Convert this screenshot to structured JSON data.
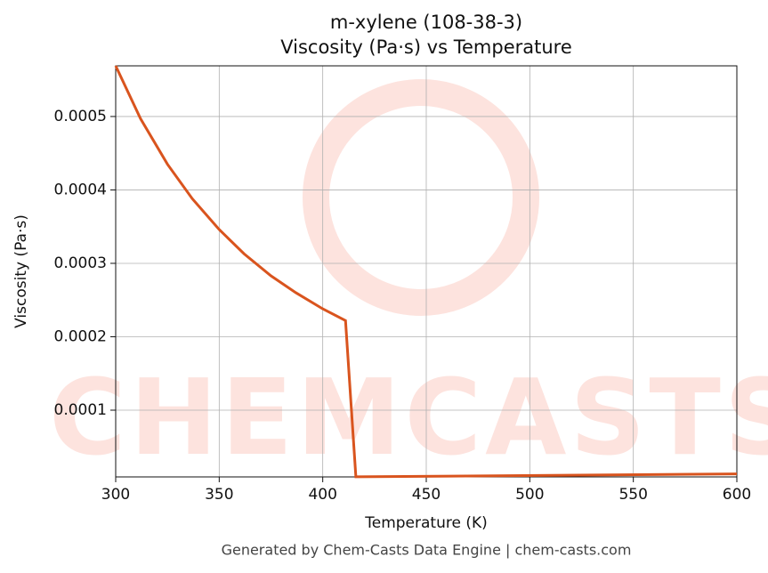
{
  "chart_data": {
    "type": "line",
    "title": "m-xylene (108-38-3)",
    "subtitle": "Viscosity (Pa·s) vs Temperature",
    "x_label": "Temperature (K)",
    "y_label": "Viscosity (Pa·s)",
    "watermark": "CHEMCASTS",
    "footer": "Generated by Chem-Casts Data Engine | chem-casts.com",
    "x": [
      300,
      312,
      325,
      337,
      350,
      362,
      375,
      387,
      400,
      411,
      416,
      600
    ],
    "series": [
      {
        "name": "Viscosity",
        "color": "#d9541e",
        "values": [
          0.000569,
          0.000497,
          0.000435,
          0.000388,
          0.000346,
          0.000313,
          0.000283,
          0.00026,
          0.000238,
          0.000222,
          9.2e-06,
          1.32e-05
        ]
      }
    ],
    "xlim": [
      300,
      600
    ],
    "ylim": [
      9.1e-06,
      0.000569
    ],
    "xticks": [
      300,
      350,
      400,
      450,
      500,
      550,
      600
    ],
    "yticks": [
      0.0001,
      0.0002,
      0.0003,
      0.0004,
      0.0005
    ],
    "grid": true
  }
}
